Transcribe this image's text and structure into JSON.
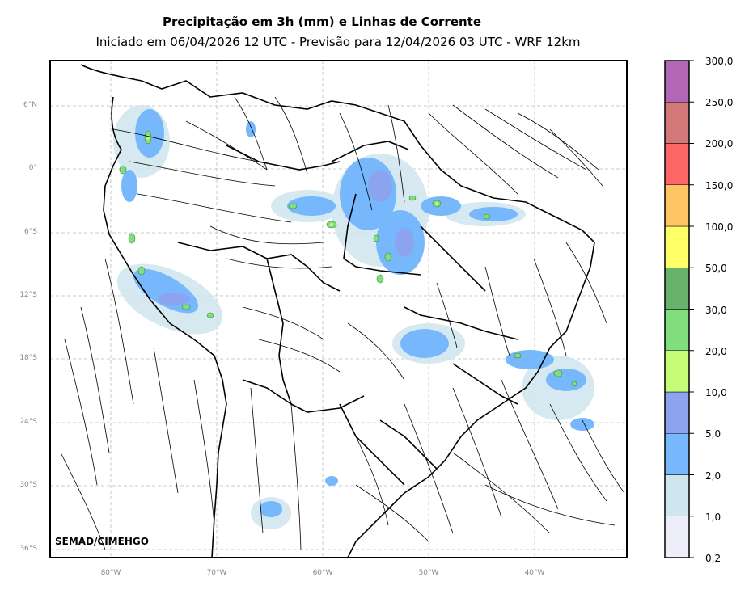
{
  "title": "Precipitação em 3h (mm) e Linhas de Corrente",
  "subtitle": "Iniciado em 06/04/2026 12 UTC - Previsão para 12/04/2026 03 UTC - WRF 12km",
  "watermark": "SEMAD/CIMEHGO",
  "lat_labels": [
    "6°N",
    "0°",
    "6°S",
    "12°S",
    "18°S",
    "24°S",
    "30°S",
    "36°S"
  ],
  "lon_labels": [
    "80°W",
    "70°W",
    "60°W",
    "50°W",
    "40°W"
  ],
  "colorbar": {
    "labels": [
      "0,2",
      "1,0",
      "2,0",
      "5,0",
      "10,0",
      "20,0",
      "30,0",
      "50,0",
      "100,0",
      "150,0",
      "200,0",
      "250,0",
      "300,0"
    ],
    "colors": [
      "#eeeefa",
      "#cfe6ef",
      "#76b8fb",
      "#8ca4ef",
      "#c6fb78",
      "#80df7c",
      "#66b26a",
      "#ffff66",
      "#fec465",
      "#ff6666",
      "#d27878",
      "#b266b6"
    ]
  },
  "colors": {
    "streamline": "#000000",
    "grid": "#bbbbbb",
    "border": "#000000"
  }
}
